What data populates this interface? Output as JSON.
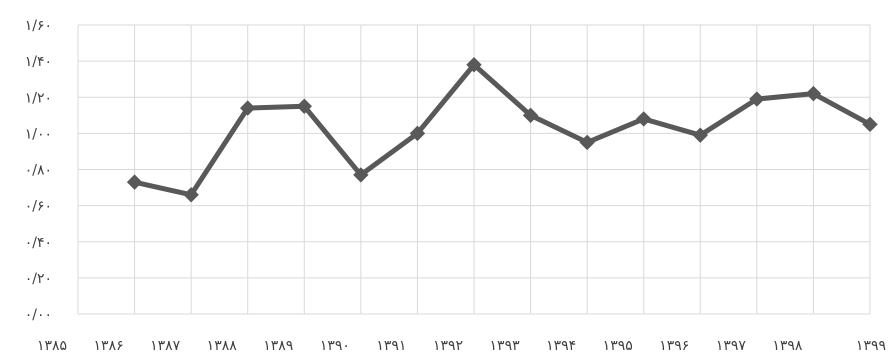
{
  "chart_data": {
    "type": "line",
    "categories": [
      "۱۳۸۵",
      "۱۳۸۶",
      "۱۳۸۷",
      "۱۳۸۸",
      "۱۳۸۹",
      "۱۳۹۰",
      "۱۳۹۱",
      "۱۳۹۲",
      "۱۳۹۳",
      "۱۳۹۴",
      "۱۳۹۵",
      "۱۳۹۶",
      "۱۳۹۷",
      "۱۳۹۸",
      "۱۳۹۹"
    ],
    "series": [
      {
        "values": [
          null,
          0.73,
          0.66,
          1.14,
          1.15,
          0.77,
          1.0,
          1.38,
          1.1,
          0.95,
          1.08,
          0.99,
          1.19,
          1.22,
          1.05
        ]
      }
    ],
    "y_ticks": [
      {
        "value": 0,
        "label": "۰/۰۰"
      },
      {
        "value": 0.2,
        "label": "۰/۲۰"
      },
      {
        "value": 0.4,
        "label": "۰/۴۰"
      },
      {
        "value": 0.6,
        "label": "۰/۶۰"
      },
      {
        "value": 0.8,
        "label": "۰/۸۰"
      },
      {
        "value": 1.0,
        "label": "۱/۰۰"
      },
      {
        "value": 1.2,
        "label": "۱/۲۰"
      },
      {
        "value": 1.4,
        "label": "۱/۴۰"
      },
      {
        "value": 1.6,
        "label": "۱/۶۰"
      }
    ],
    "ylim": [
      0,
      1.6
    ],
    "grid": true,
    "legend": "none",
    "line_color": "#595959",
    "grid_color": "#d9d9d9"
  }
}
